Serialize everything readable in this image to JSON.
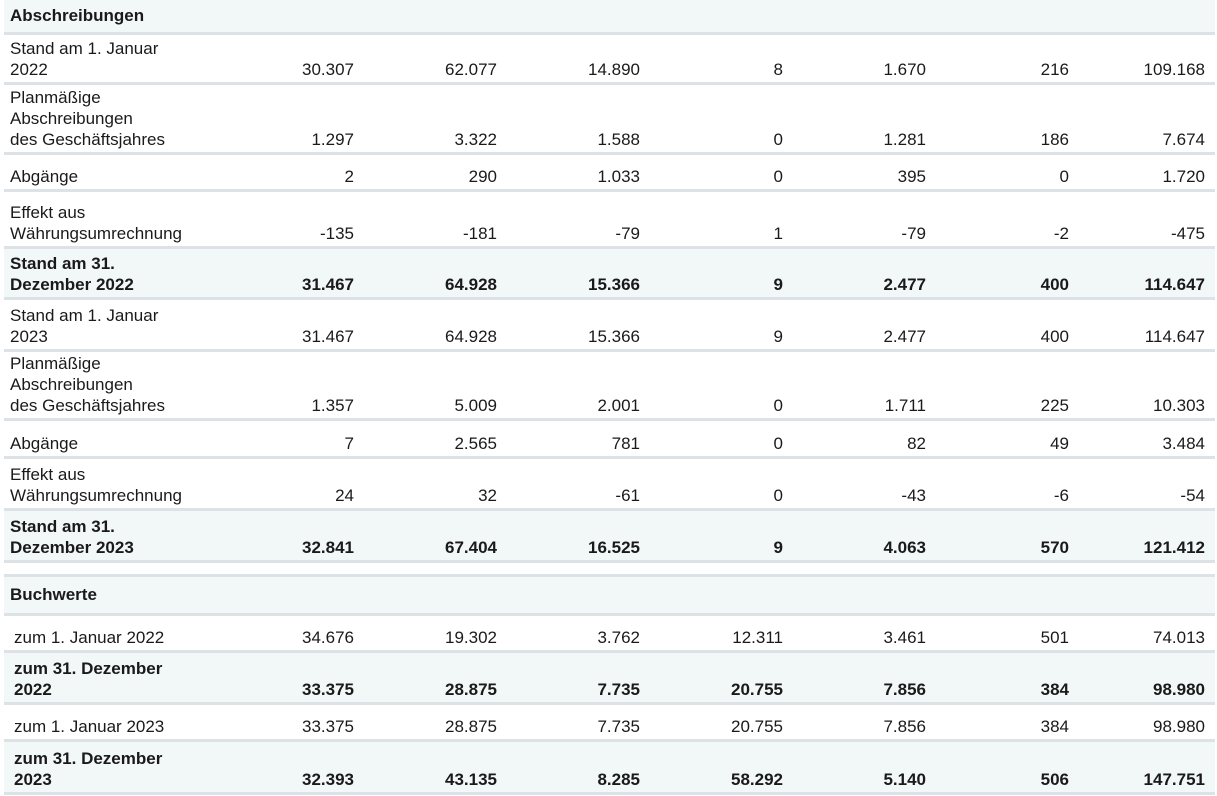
{
  "section_abschreibungen": "Abschreibungen",
  "section_buchwerte": "Buchwerte",
  "abschreibungen_rows": [
    {
      "label": "Stand am 1. Januar\n2022",
      "values": [
        "30.307",
        "62.077",
        "14.890",
        "8",
        "1.670",
        "216",
        "109.168"
      ],
      "bold": false,
      "shade": false,
      "height": 50
    },
    {
      "label": "Planmäßige\nAbschreibungen\ndes Geschäftsjahres",
      "values": [
        "1.297",
        "3.322",
        "1.588",
        "0",
        "1.281",
        "186",
        "7.674"
      ],
      "bold": false,
      "shade": false,
      "height": 70
    },
    {
      "label": "Abgänge",
      "values": [
        "2",
        "290",
        "1.033",
        "0",
        "395",
        "0",
        "1.720"
      ],
      "bold": false,
      "shade": false,
      "height": 37
    },
    {
      "label": "Effekt aus\nWährungsumrechnung",
      "values": [
        "-135",
        "-181",
        "-79",
        "1",
        "-79",
        "-2",
        "-475"
      ],
      "bold": false,
      "shade": false,
      "height": 57
    },
    {
      "label": "Stand am 31.\nDezember 2022",
      "values": [
        "31.467",
        "64.928",
        "15.366",
        "9",
        "2.477",
        "400",
        "114.647"
      ],
      "bold": true,
      "shade": true,
      "height": 51
    },
    {
      "label": "Stand am 1. Januar\n2023",
      "values": [
        "31.467",
        "64.928",
        "15.366",
        "9",
        "2.477",
        "400",
        "114.647"
      ],
      "bold": false,
      "shade": false,
      "height": 52
    },
    {
      "label": "Planmäßige\nAbschreibungen\ndes Geschäftsjahres",
      "values": [
        "1.357",
        "5.009",
        "2.001",
        "0",
        "1.711",
        "225",
        "10.303"
      ],
      "bold": false,
      "shade": false,
      "height": 69
    },
    {
      "label": "Abgänge",
      "values": [
        "7",
        "2.565",
        "781",
        "0",
        "82",
        "49",
        "3.484"
      ],
      "bold": false,
      "shade": false,
      "height": 38
    },
    {
      "label": "Effekt aus\nWährungsumrechnung",
      "values": [
        "24",
        "32",
        "-61",
        "0",
        "-43",
        "-6",
        "-54"
      ],
      "bold": false,
      "shade": false,
      "height": 52
    },
    {
      "label": "Stand am 31.\nDezember 2023",
      "values": [
        "32.841",
        "67.404",
        "16.525",
        "9",
        "4.063",
        "570",
        "121.412"
      ],
      "bold": true,
      "shade": true,
      "height": 52
    }
  ],
  "buchwerte_rows": [
    {
      "label": "zum 1. Januar 2022",
      "values": [
        "34.676",
        "19.302",
        "3.762",
        "12.311",
        "3.461",
        "501",
        "74.013"
      ],
      "bold": false,
      "shade": false,
      "height": 37
    },
    {
      "label": "zum 31. Dezember\n2022",
      "values": [
        "33.375",
        "28.875",
        "7.735",
        "20.755",
        "7.856",
        "384",
        "98.980"
      ],
      "bold": true,
      "shade": true,
      "height": 52
    },
    {
      "label": "zum 1. Januar 2023",
      "values": [
        "33.375",
        "28.875",
        "7.735",
        "20.755",
        "7.856",
        "384",
        "98.980"
      ],
      "bold": false,
      "shade": false,
      "height": 37
    },
    {
      "label": "zum 31. Dezember\n2023",
      "values": [
        "32.393",
        "43.135",
        "8.285",
        "58.292",
        "5.140",
        "506",
        "147.751"
      ],
      "bold": true,
      "shade": true,
      "height": 53
    }
  ]
}
